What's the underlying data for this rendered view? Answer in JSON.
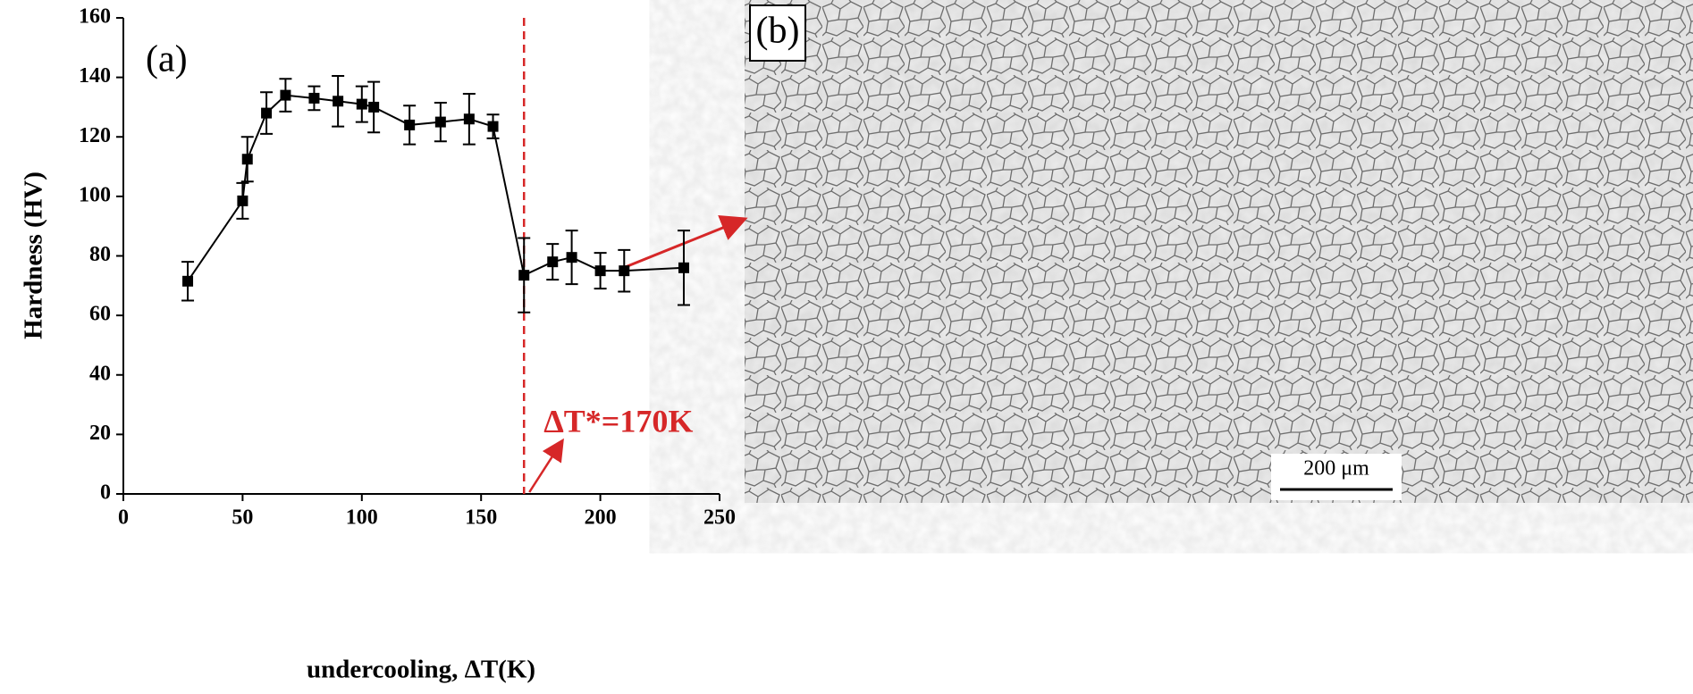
{
  "chart_data": {
    "type": "line",
    "panel_label": "(a)",
    "xlabel": "undercooling, ΔT(K)",
    "ylabel": "Hardness (HV)",
    "x": [
      27,
      50,
      52,
      60,
      68,
      80,
      90,
      100,
      105,
      120,
      133,
      145,
      155,
      168,
      180,
      188,
      200,
      210,
      235
    ],
    "series": [
      {
        "color": "#000000",
        "values": [
          71.5,
          98.5,
          112.5,
          128,
          134,
          133,
          132,
          131,
          130,
          124,
          125,
          126,
          123.5,
          73.5,
          78,
          79.5,
          75,
          75,
          76
        ],
        "errors": [
          6.5,
          6,
          7.5,
          7,
          5.5,
          4,
          8.5,
          6,
          8.5,
          6.5,
          6.5,
          8.5,
          4,
          12.5,
          6,
          9,
          6,
          7,
          12.5
        ]
      }
    ],
    "xlim": [
      0,
      250
    ],
    "ylim": [
      0,
      160
    ],
    "xticks": [
      0,
      50,
      100,
      150,
      200,
      250
    ],
    "yticks": [
      0,
      20,
      40,
      60,
      80,
      100,
      120,
      140,
      160
    ],
    "reference_line": {
      "x": 168,
      "color": "#d62728",
      "label": "ΔT*=170K"
    }
  },
  "image_panel": {
    "label": "(b)",
    "scale_bar": "200 μm"
  }
}
